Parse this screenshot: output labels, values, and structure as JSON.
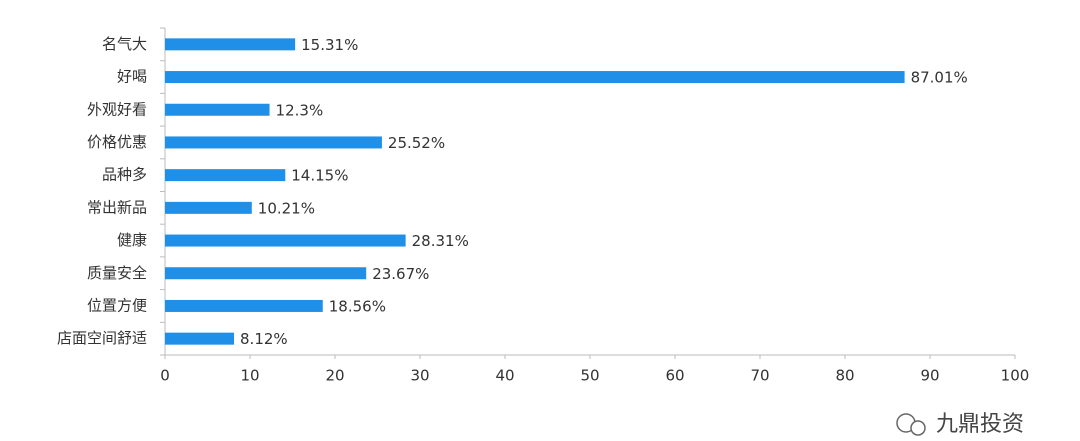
{
  "chart_data": {
    "type": "bar",
    "orientation": "horizontal",
    "categories": [
      "名气大",
      "好喝",
      "外观好看",
      "价格优惠",
      "品种多",
      "常出新品",
      "健康",
      "质量安全",
      "位置方便",
      "店面空间舒适"
    ],
    "values": [
      15.31,
      87.01,
      12.3,
      25.52,
      14.15,
      10.21,
      28.31,
      23.67,
      18.56,
      8.12
    ],
    "value_labels": [
      "15.31%",
      "87.01%",
      "12.3%",
      "25.52%",
      "14.15%",
      "10.21%",
      "28.31%",
      "23.67%",
      "18.56%",
      "8.12%"
    ],
    "color": "#1f8fe8",
    "xlim": [
      0,
      100
    ],
    "xticks": [
      0,
      10,
      20,
      30,
      40,
      50,
      60,
      70,
      80,
      90,
      100
    ],
    "grid": false
  },
  "watermark": "九鼎投资"
}
